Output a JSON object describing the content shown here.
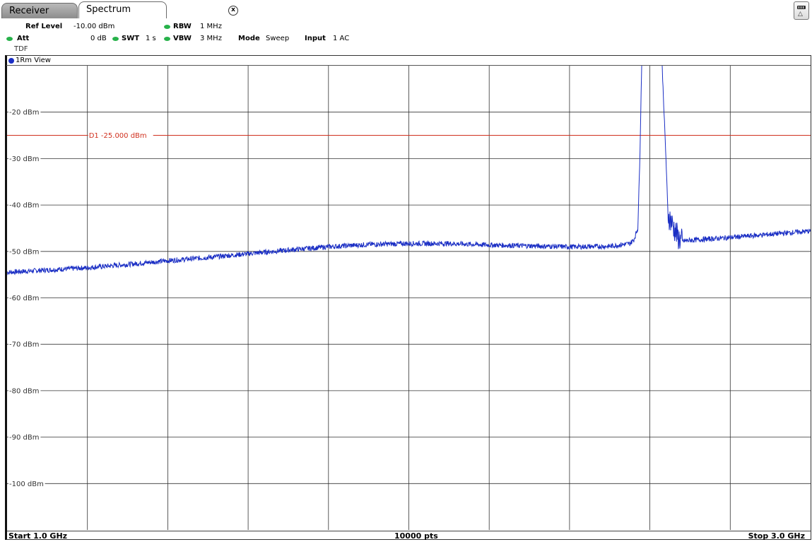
{
  "tabs": [
    {
      "label": "Receiver"
    },
    {
      "label": "Spectrum"
    }
  ],
  "header": {
    "ref_level_label": "Ref Level",
    "ref_level_value": "-10.00 dBm",
    "att_label": "Att",
    "att_value": "0 dB",
    "swt_label": "SWT",
    "swt_value": "1 s",
    "rbw_label": "RBW",
    "rbw_value": "1 MHz",
    "vbw_label": "VBW",
    "vbw_value": "3 MHz",
    "mode_label": "Mode",
    "mode_value": "Sweep",
    "input_label": "Input",
    "input_value": "1 AC",
    "tdf": "TDF"
  },
  "view_label": "1Rm View",
  "footer": {
    "start": "Start 1.0 GHz",
    "points": "10000 pts",
    "stop": "Stop 3.0 GHz"
  },
  "colors": {
    "trace": "#1a2ec4",
    "display_line": "#d0301e",
    "grid": "#333333"
  },
  "chart_data": {
    "type": "line",
    "xlim": [
      1.0,
      3.0
    ],
    "x_unit": "GHz",
    "ylim": [
      -110,
      -10
    ],
    "y_unit": "dBm",
    "y_ticks": [
      -20,
      -30,
      -40,
      -50,
      -60,
      -70,
      -80,
      -90,
      -100
    ],
    "y_tick_labels": [
      "-20 dBm",
      "-30 dBm",
      "-40 dBm",
      "-50 dBm",
      "-60 dBm",
      "-70 dBm",
      "-80 dBm",
      "-90 dBm",
      "-100 dBm"
    ],
    "x_divisions": 10,
    "grid": true,
    "display_line": {
      "label": "D1",
      "value_text": "-25.000 dBm",
      "value": -25
    },
    "series": [
      {
        "x": [
          1.0,
          1.1,
          1.2,
          1.3,
          1.4,
          1.5,
          1.6,
          1.7,
          1.8,
          1.9,
          2.0,
          2.1,
          2.2,
          2.3,
          2.4,
          2.5,
          2.55,
          2.56,
          2.57,
          2.575,
          2.58,
          2.59,
          2.6,
          2.62,
          2.63,
          2.64,
          2.645,
          2.65,
          2.66,
          2.67,
          2.68,
          2.7,
          2.8,
          2.9,
          3.0
        ],
        "y": [
          -54.5,
          -54.0,
          -53.5,
          -52.8,
          -52.0,
          -51.3,
          -50.5,
          -49.7,
          -49.0,
          -48.5,
          -48.3,
          -48.3,
          -48.6,
          -48.8,
          -49.0,
          -48.9,
          -48.3,
          -47.5,
          -45.0,
          -30.0,
          -8.0,
          -8.0,
          -8.0,
          -8.0,
          -9.0,
          -30.0,
          -42.0,
          -43.0,
          -45.0,
          -47.0,
          -47.8,
          -47.6,
          -47.0,
          -46.3,
          -45.6
        ]
      }
    ]
  }
}
